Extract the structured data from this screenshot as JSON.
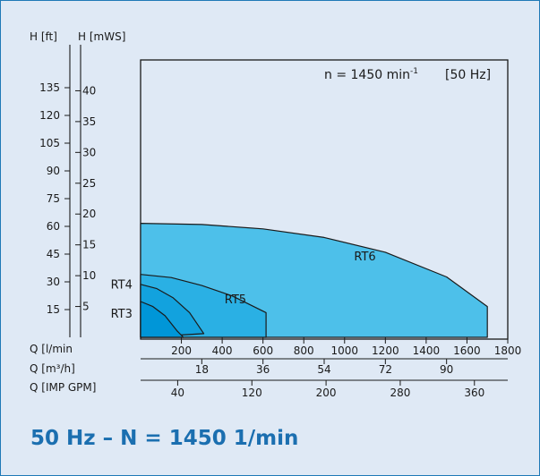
{
  "chart_data": {
    "type": "area",
    "title": "",
    "annotation_speed": "n  =  1450  min",
    "annotation_speed_exp": "-1",
    "annotation_freq": "[50 Hz]",
    "y_axes": [
      {
        "label": "H [ft]",
        "unit": "ft",
        "ticks": [
          15,
          30,
          45,
          60,
          75,
          90,
          105,
          120,
          135
        ]
      },
      {
        "label": "H [mWS]",
        "unit": "m",
        "ticks": [
          5,
          10,
          15,
          20,
          25,
          30,
          35,
          40
        ]
      }
    ],
    "x_axes": [
      {
        "label": "Q  [l/min",
        "unit": "l/min",
        "ticks": [
          200,
          400,
          600,
          800,
          1000,
          1200,
          1400,
          1600,
          1800
        ]
      },
      {
        "label": "Q  [m³/h]",
        "unit": "m3/h",
        "ticks": [
          18,
          36,
          54,
          72,
          90
        ]
      },
      {
        "label": "Q  [IMP GPM]",
        "unit": "IMP GPM",
        "ticks": [
          40,
          120,
          200,
          280,
          360
        ]
      }
    ],
    "xlim": [
      0,
      1800
    ],
    "ylim_m": [
      0,
      45
    ],
    "ylim_ft": [
      0,
      150
    ],
    "grid": false,
    "series": [
      {
        "name": "RT6",
        "color": "#4dc0ea",
        "points": [
          [
            0,
            18.5
          ],
          [
            300,
            18.3
          ],
          [
            600,
            17.6
          ],
          [
            900,
            16.2
          ],
          [
            1200,
            13.8
          ],
          [
            1500,
            9.8
          ],
          [
            1700,
            5.0
          ],
          [
            1700,
            0
          ]
        ]
      },
      {
        "name": "RT5",
        "color": "#2ab0e4",
        "points": [
          [
            0,
            10.2
          ],
          [
            150,
            9.7
          ],
          [
            300,
            8.4
          ],
          [
            450,
            6.7
          ],
          [
            615,
            4.0
          ],
          [
            615,
            0
          ]
        ]
      },
      {
        "name": "RT4",
        "color": "#12a2de",
        "points": [
          [
            0,
            8.6
          ],
          [
            80,
            7.9
          ],
          [
            160,
            6.4
          ],
          [
            240,
            4.0
          ],
          [
            310,
            0.6
          ]
        ]
      },
      {
        "name": "RT3",
        "color": "#0096d8",
        "points": [
          [
            0,
            5.8
          ],
          [
            60,
            5.0
          ],
          [
            120,
            3.5
          ],
          [
            180,
            1.0
          ],
          [
            210,
            0
          ]
        ]
      }
    ]
  },
  "caption": "50 Hz – N = 1450 1/min"
}
